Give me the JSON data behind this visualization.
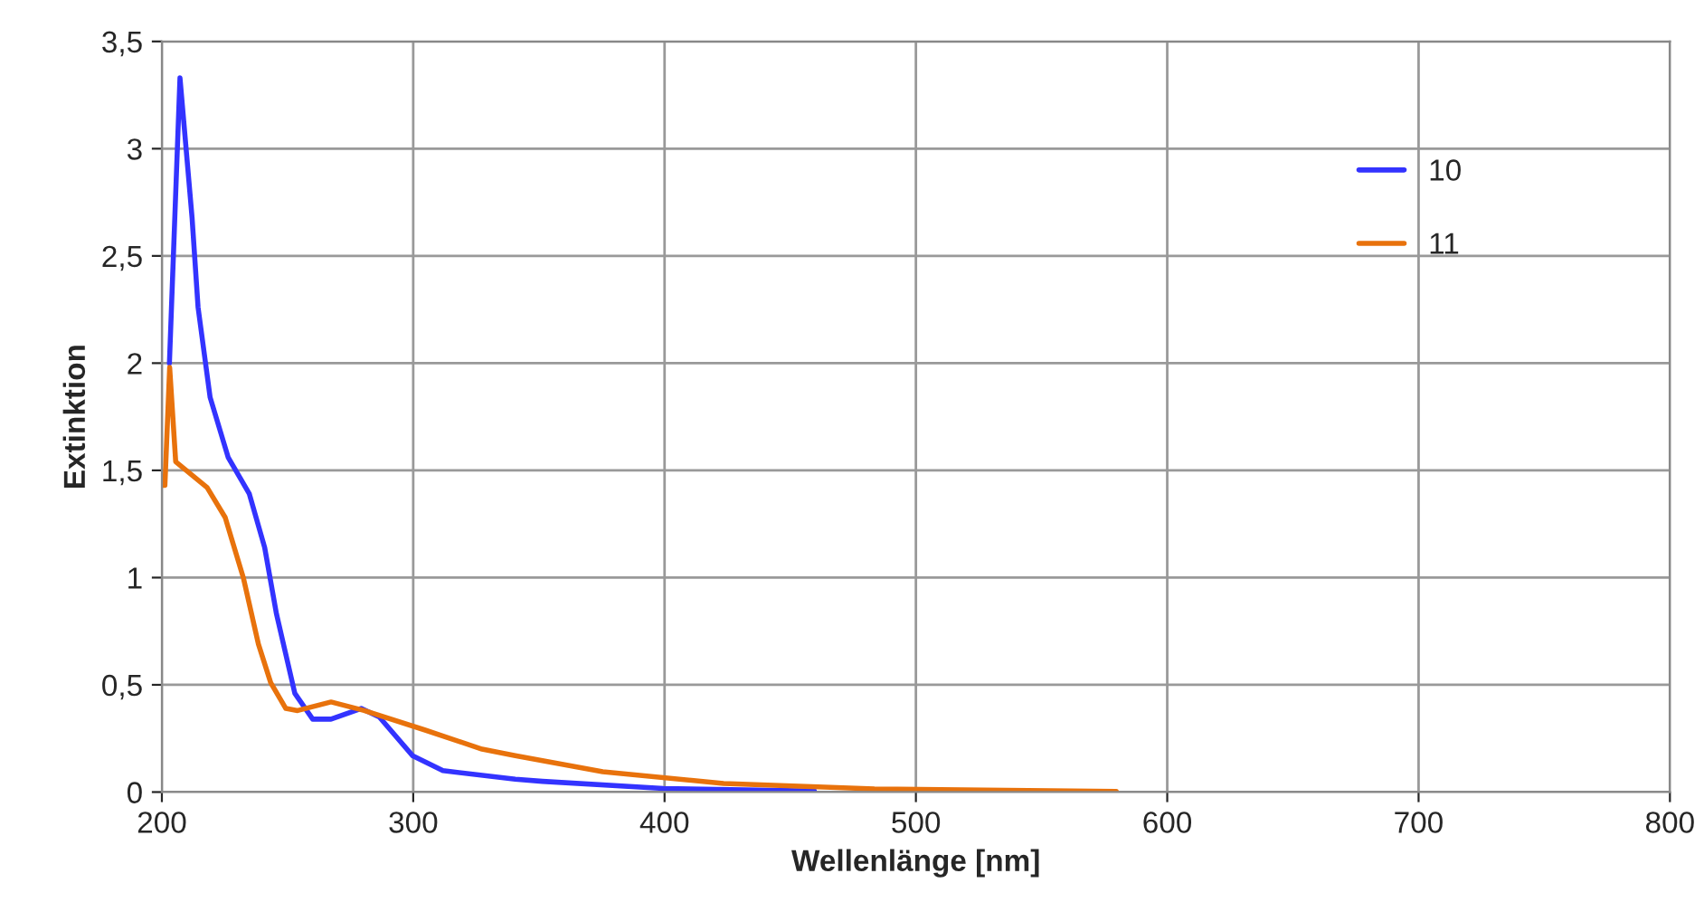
{
  "chart_data": {
    "type": "line",
    "xlabel": "Wellenlänge [nm]",
    "ylabel": "Extinktion",
    "xlim": [
      200,
      800
    ],
    "xticks": [
      200,
      300,
      400,
      500,
      600,
      700,
      800
    ],
    "ylim": [
      0,
      3.5
    ],
    "yticks": [
      0,
      {
        "value": 0.5,
        "label": "0,5"
      },
      1,
      {
        "value": 1.5,
        "label": "1,5"
      },
      2,
      {
        "value": 2.5,
        "label": "2,5"
      },
      3,
      {
        "value": 3.5,
        "label": "3,5"
      }
    ],
    "grid": true,
    "legend": "top right",
    "marker": "none",
    "line_style": "solid",
    "series": [
      {
        "name": "10",
        "color": "#3333ff",
        "x": [
          203,
          207.2,
          212,
          214.4,
          219.2,
          226.4,
          234.8,
          240.9,
          245.6,
          252.9,
          260,
          267.3,
          279.3,
          286.5,
          299.7,
          311.8,
          340.6,
          351.4,
          399.5,
          459.6
        ],
        "values": [
          2.0,
          3.33,
          2.68,
          2.26,
          1.84,
          1.56,
          1.39,
          1.14,
          0.83,
          0.46,
          0.34,
          0.34,
          0.39,
          0.35,
          0.17,
          0.1,
          0.06,
          0.05,
          0.017,
          0.005
        ]
      },
      {
        "name": "11",
        "color": "#e8720c",
        "x": [
          200,
          201.2,
          203.1,
          205.5,
          218,
          225.2,
          232.4,
          238.4,
          243.3,
          249.3,
          254,
          267.3,
          280.5,
          304.5,
          327.4,
          340.6,
          375.4,
          423.5,
          483.5,
          579.7
        ],
        "values": [
          1.43,
          1.43,
          1.98,
          1.54,
          1.42,
          1.28,
          1.0,
          0.69,
          0.51,
          0.39,
          0.38,
          0.42,
          0.38,
          0.29,
          0.2,
          0.17,
          0.095,
          0.04,
          0.015,
          0.003
        ]
      }
    ]
  }
}
